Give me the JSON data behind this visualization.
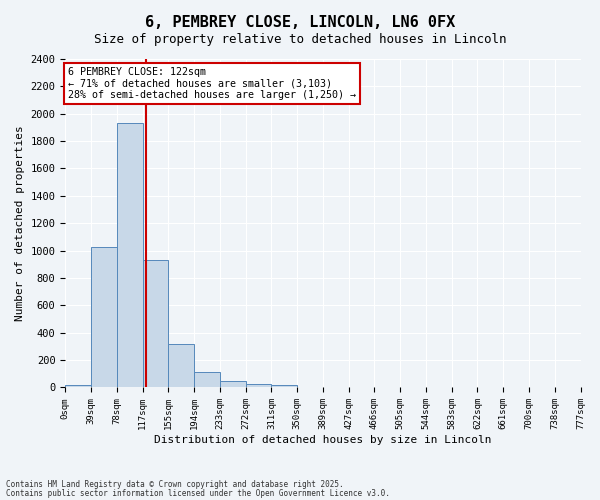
{
  "title": "6, PEMBREY CLOSE, LINCOLN, LN6 0FX",
  "subtitle": "Size of property relative to detached houses in Lincoln",
  "xlabel": "Distribution of detached houses by size in Lincoln",
  "ylabel": "Number of detached properties",
  "bin_labels": [
    "0sqm",
    "39sqm",
    "78sqm",
    "117sqm",
    "155sqm",
    "194sqm",
    "233sqm",
    "272sqm",
    "311sqm",
    "350sqm",
    "389sqm",
    "427sqm",
    "466sqm",
    "505sqm",
    "544sqm",
    "583sqm",
    "622sqm",
    "661sqm",
    "700sqm",
    "738sqm",
    "777sqm"
  ],
  "bar_heights": [
    20,
    1030,
    1930,
    930,
    320,
    110,
    50,
    25,
    20,
    0,
    0,
    0,
    0,
    0,
    0,
    0,
    0,
    0,
    0,
    0
  ],
  "bar_color": "#c8d8e8",
  "bar_edge_color": "#5588bb",
  "property_line_x": 122,
  "property_line_label": "6 PEMBREY CLOSE: 122sqm",
  "annotation_line1": "← 71% of detached houses are smaller (3,103)",
  "annotation_line2": "28% of semi-detached houses are larger (1,250) →",
  "annotation_box_color": "#cc0000",
  "annotation_bg": "#ffffff",
  "vline_color": "#cc0000",
  "ylim": [
    0,
    2400
  ],
  "xlim_min": 0,
  "xlim_max": 777,
  "bin_width": 39,
  "background_color": "#f0f4f8",
  "grid_color": "#ffffff",
  "footer1": "Contains HM Land Registry data © Crown copyright and database right 2025.",
  "footer2": "Contains public sector information licensed under the Open Government Licence v3.0."
}
